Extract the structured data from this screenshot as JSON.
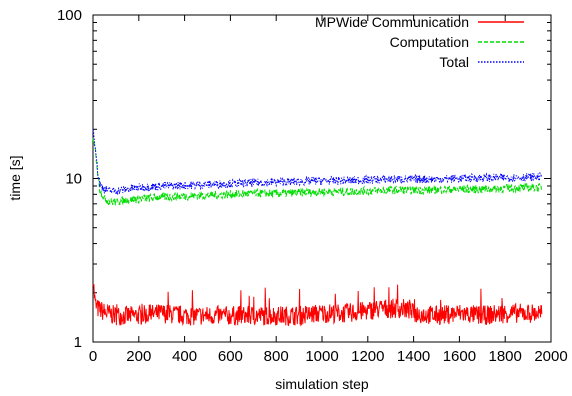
{
  "chart_data": {
    "type": "line",
    "xlabel": "simulation step",
    "ylabel": "time [s]",
    "xlim": [
      0,
      2000
    ],
    "ylim": [
      1,
      100
    ],
    "yscale": "log",
    "grid": false,
    "legend_position": "top-right",
    "xticks": [
      "0",
      "200",
      "400",
      "600",
      "800",
      "1000",
      "1200",
      "1400",
      "1600",
      "1800",
      "2000"
    ],
    "yticks": [
      "1",
      "10",
      "100"
    ],
    "series": [
      {
        "name": "MPWide Communication",
        "color": "#ff0000",
        "dash": "solid",
        "x": [
          0,
          5,
          10,
          20,
          40,
          60,
          100,
          200,
          300,
          400,
          500,
          600,
          700,
          800,
          900,
          1000,
          1100,
          1200,
          1250,
          1300,
          1340,
          1360,
          1400,
          1500,
          1600,
          1700,
          1800,
          1900,
          1960
        ],
        "y": [
          2.6,
          2.0,
          1.7,
          1.6,
          1.55,
          1.5,
          1.45,
          1.45,
          1.5,
          1.45,
          1.45,
          1.45,
          1.45,
          1.45,
          1.45,
          1.5,
          1.5,
          1.55,
          1.6,
          1.6,
          1.6,
          1.6,
          1.5,
          1.45,
          1.5,
          1.45,
          1.5,
          1.5,
          1.5
        ]
      },
      {
        "name": "Computation",
        "color": "#00dd00",
        "dash": "dashed",
        "x": [
          0,
          5,
          10,
          20,
          30,
          50,
          75,
          100,
          150,
          200,
          300,
          400,
          500,
          600,
          700,
          800,
          900,
          1000,
          1100,
          1200,
          1300,
          1400,
          1500,
          1600,
          1700,
          1800,
          1900,
          1960
        ],
        "y": [
          17,
          16,
          15,
          11,
          8.5,
          7.5,
          7.2,
          7.2,
          7.4,
          7.5,
          7.7,
          7.8,
          7.9,
          8.0,
          8.1,
          8.1,
          8.2,
          8.3,
          8.3,
          8.4,
          8.5,
          8.5,
          8.5,
          8.6,
          8.6,
          8.7,
          8.8,
          8.8
        ]
      },
      {
        "name": "Total",
        "color": "#0000ff",
        "dash": "dotted",
        "x": [
          0,
          5,
          10,
          20,
          30,
          50,
          75,
          100,
          150,
          200,
          300,
          400,
          500,
          600,
          700,
          800,
          900,
          1000,
          1100,
          1200,
          1300,
          1400,
          1500,
          1600,
          1700,
          1800,
          1900,
          1960
        ],
        "y": [
          20,
          18,
          16,
          11,
          9.2,
          8.6,
          8.4,
          8.4,
          8.6,
          8.8,
          9.0,
          9.1,
          9.2,
          9.3,
          9.4,
          9.5,
          9.6,
          9.7,
          9.7,
          9.8,
          9.9,
          9.9,
          9.9,
          10.0,
          10.1,
          10.1,
          10.2,
          10.2
        ]
      }
    ]
  }
}
